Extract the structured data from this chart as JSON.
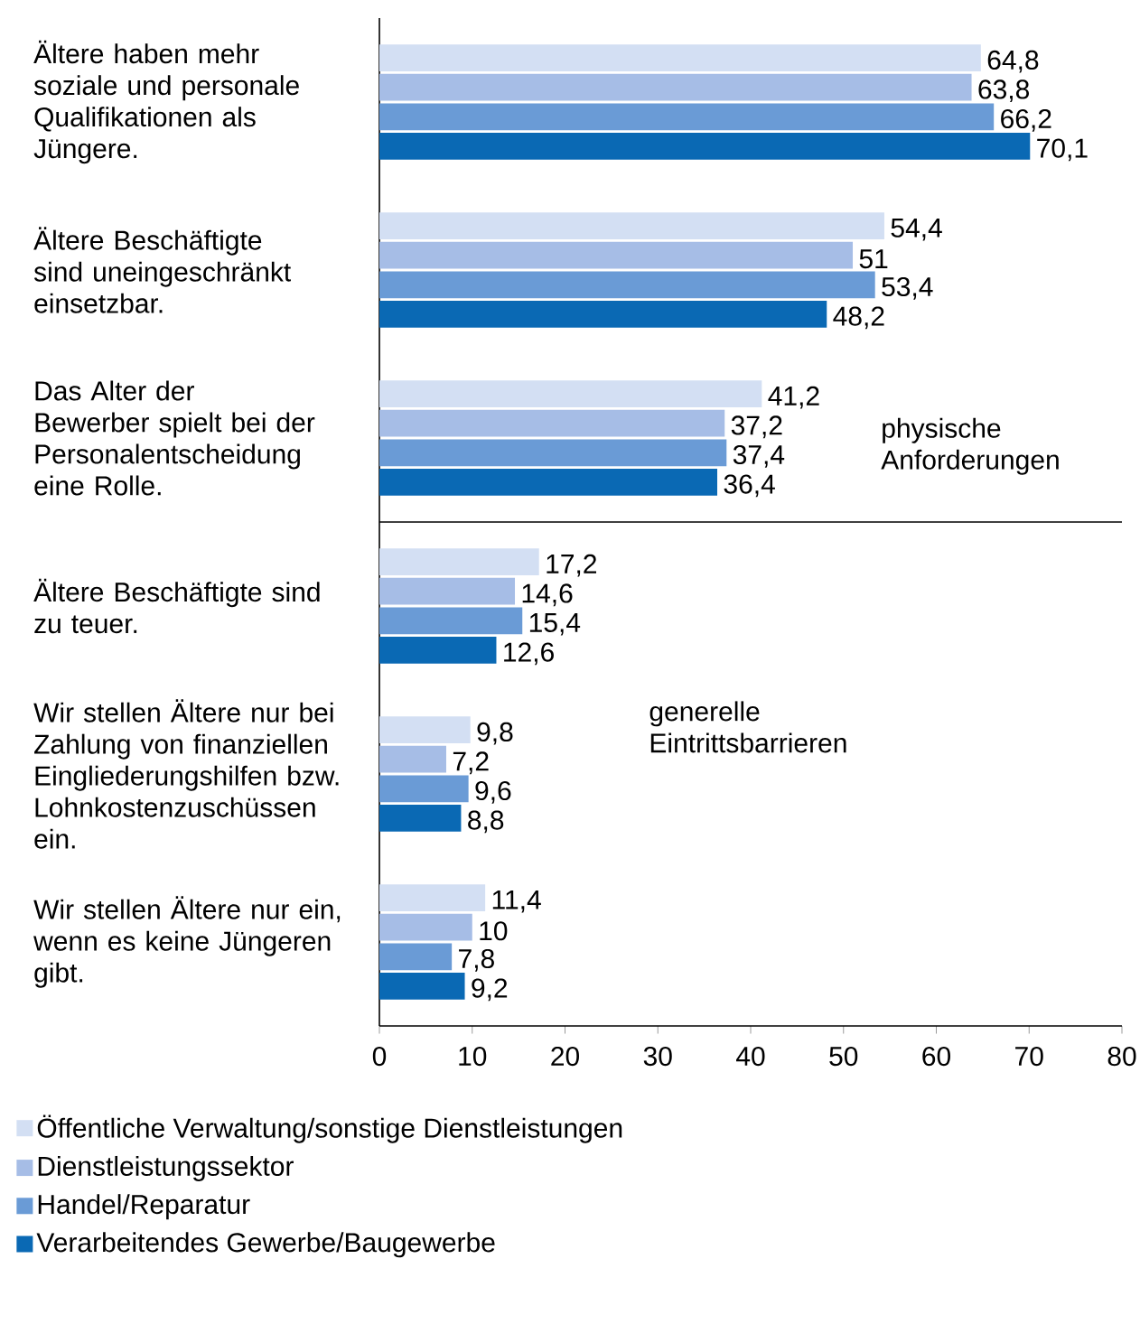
{
  "chart_data": {
    "type": "bar",
    "orientation": "horizontal",
    "categories": [
      "Ältere haben mehr soziale und personale Qualifikationen als Jüngere.",
      "Ältere Beschäftigte sind uneingeschränkt einsetzbar.",
      "Das Alter der Bewerber spielt bei der Personalentscheidung eine Rolle.",
      "Ältere Beschäftigte sind zu teuer.",
      "Wir stellen Ältere nur bei Zahlung von finanziellen Eingliederungshilfen bzw. Lohnkostenzuschüssen ein.",
      "Wir stellen Ältere nur ein, wenn es keine Jüngeren gibt."
    ],
    "series": [
      {
        "name": "Öffentliche Verwaltung/sonstige Dienstleistungen",
        "color": "#d3dff3",
        "values": [
          64.8,
          54.4,
          41.2,
          17.2,
          9.8,
          11.4
        ],
        "value_labels": [
          "64,8",
          "54,4",
          "41,2",
          "17,2",
          "9,8",
          "11,4"
        ]
      },
      {
        "name": "Dienstleistungssektor",
        "color": "#a6bde6",
        "values": [
          63.8,
          51,
          37.2,
          14.6,
          7.2,
          10
        ],
        "value_labels": [
          "63,8",
          "51",
          "37,2",
          "14,6",
          "7,2",
          "10"
        ]
      },
      {
        "name": "Handel/Reparatur",
        "color": "#6a9bd6",
        "values": [
          66.2,
          53.4,
          37.4,
          15.4,
          9.6,
          7.8
        ],
        "value_labels": [
          "66,2",
          "53,4",
          "37,4",
          "15,4",
          "9,6",
          "7,8"
        ]
      },
      {
        "name": "Verarbeitendes Gewerbe/Baugewerbe",
        "color": "#0a69b4",
        "values": [
          70.1,
          48.2,
          36.4,
          12.6,
          8.8,
          9.2
        ],
        "value_labels": [
          "70,1",
          "48,2",
          "36,4",
          "12,6",
          "8,8",
          "9,2"
        ]
      }
    ],
    "xlim": [
      0,
      80
    ],
    "xticks": [
      0,
      10,
      20,
      30,
      40,
      50,
      60,
      70,
      80
    ],
    "annotations": [
      "physische Anforderungen",
      "generelle Eintrittsbarrieren"
    ],
    "legend": "bottom"
  }
}
